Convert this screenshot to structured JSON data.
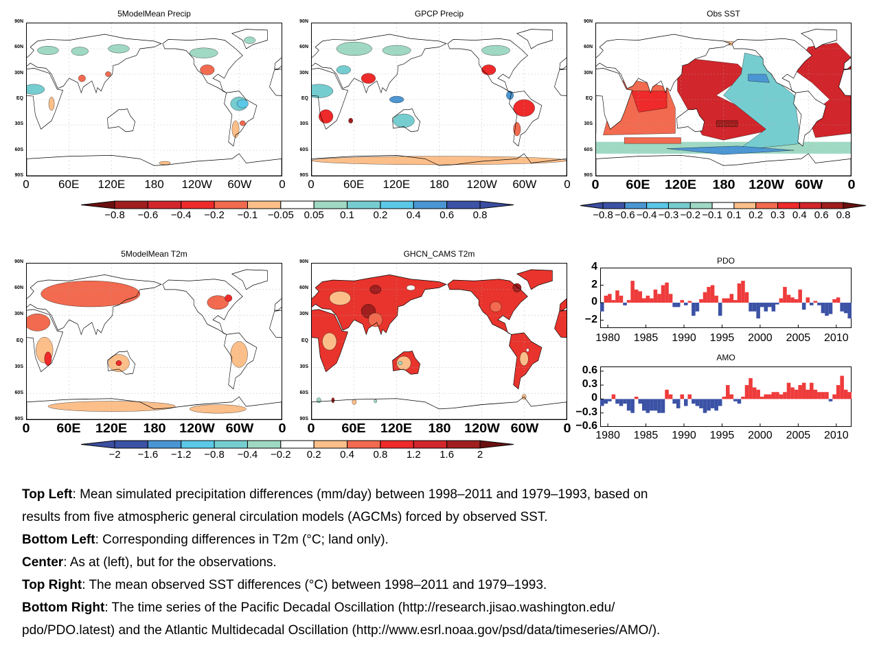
{
  "maps": [
    {
      "id": "m1",
      "title": "5ModelMean Precip",
      "lat_labels": [
        "90N",
        "60N",
        "30N",
        "EQ",
        "30S",
        "60S",
        "90S"
      ],
      "lon_labels": [
        "0",
        "60E",
        "120E",
        "180",
        "120W",
        "60W",
        "0"
      ]
    },
    {
      "id": "m2",
      "title": "GPCP Precip",
      "lat_labels": [
        "90N",
        "60N",
        "30N",
        "EQ",
        "30S",
        "60S",
        "90S"
      ],
      "lon_labels": [
        "0",
        "60E",
        "120E",
        "180",
        "120W",
        "60W",
        "0"
      ]
    },
    {
      "id": "m3",
      "title": "Obs SST",
      "lat_labels": [
        "90N",
        "60N",
        "30N",
        "EQ",
        "30S",
        "60S",
        "90S"
      ],
      "lon_labels": [
        "0",
        "60E",
        "120E",
        "180",
        "120W",
        "60W",
        "0"
      ]
    },
    {
      "id": "m4",
      "title": "5ModelMean T2m",
      "lat_labels": [
        "90N",
        "60N",
        "30N",
        "EQ",
        "30S",
        "60S",
        "90S"
      ],
      "lon_labels": [
        "0",
        "60E",
        "120E",
        "180",
        "120W",
        "60W",
        "0"
      ]
    },
    {
      "id": "m5",
      "title": "GHCN_CAMS T2m",
      "lat_labels": [
        "90N",
        "60N",
        "30N",
        "EQ",
        "30S",
        "60S",
        "90S"
      ],
      "lon_labels": [
        "0",
        "60E",
        "120E",
        "180",
        "120W",
        "60W",
        "0"
      ]
    }
  ],
  "colorbars": {
    "precip": {
      "labels": [
        "−0.8",
        "−0.6",
        "−0.4",
        "−0.2",
        "−0.1",
        "−0.05",
        "0.05",
        "0.1",
        "0.2",
        "0.4",
        "0.6",
        "0.8"
      ],
      "colors": [
        "#6b1010",
        "#a01e1e",
        "#d1262b",
        "#ee2a2a",
        "#f26a4f",
        "#fdbf8a",
        "#ffffff",
        "#9fd9c4",
        "#76cdd0",
        "#5bc8e8",
        "#4a96d4",
        "#3b52a5",
        "#3b4ea0"
      ]
    },
    "sst": {
      "labels": [
        "−0.8",
        "−0.6",
        "−0.4",
        "−0.3",
        "−0.2",
        "−0.1",
        "0.1",
        "0.2",
        "0.3",
        "0.4",
        "0.6",
        "0.8"
      ],
      "colors": [
        "#3b4ea0",
        "#3b52a5",
        "#4a96d4",
        "#5bc8e8",
        "#76cdd0",
        "#9fd9c4",
        "#ffffff",
        "#fdbf8a",
        "#f26a4f",
        "#ee2a2a",
        "#d1262b",
        "#a01e1e",
        "#6b1010"
      ]
    },
    "t2m": {
      "labels": [
        "−2",
        "−1.6",
        "−1.2",
        "−0.8",
        "−0.4",
        "−0.2",
        "0.2",
        "0.4",
        "0.8",
        "1.2",
        "1.6",
        "2"
      ],
      "colors": [
        "#3b4ea0",
        "#3b52a5",
        "#4a96d4",
        "#5bc8e8",
        "#76cdd0",
        "#9fd9c4",
        "#ffffff",
        "#fdbf8a",
        "#f26a4f",
        "#ee2a2a",
        "#d1262b",
        "#a01e1e",
        "#6b1010"
      ]
    }
  },
  "chart_data": [
    {
      "type": "bar",
      "title": "PDO",
      "ylim": [
        -2.9,
        4
      ],
      "yticks": [
        "4",
        "2",
        "0",
        "−2"
      ],
      "ytick_values": [
        4,
        2,
        0,
        -2
      ],
      "xlim": [
        1979,
        2012
      ],
      "xticks": [
        "1980",
        "1985",
        "1990",
        "1995",
        "2000",
        "2005",
        "2010"
      ],
      "positive_color": "#ee3b3b",
      "negative_color": "#3b52a5",
      "x": [
        1979,
        1979.5,
        1980,
        1980.5,
        1981,
        1981.5,
        1982,
        1982.5,
        1983,
        1983.5,
        1984,
        1984.5,
        1985,
        1985.5,
        1986,
        1986.5,
        1987,
        1987.5,
        1988,
        1988.5,
        1989,
        1989.5,
        1990,
        1990.5,
        1991,
        1991.5,
        1992,
        1992.5,
        1993,
        1993.5,
        1994,
        1994.5,
        1995,
        1995.5,
        1996,
        1996.5,
        1997,
        1997.5,
        1998,
        1998.5,
        1999,
        1999.5,
        2000,
        2000.5,
        2001,
        2001.5,
        2002,
        2002.5,
        2003,
        2003.5,
        2004,
        2004.5,
        2005,
        2005.5,
        2006,
        2006.5,
        2007,
        2007.5,
        2008,
        2008.5,
        2009,
        2009.5,
        2010,
        2010.5,
        2011,
        2011.5
      ],
      "values": [
        -1,
        0.8,
        1.0,
        0.3,
        1.4,
        0.8,
        -0.3,
        0.3,
        2.5,
        1.5,
        1.3,
        0.5,
        0.8,
        0.5,
        1.5,
        1.0,
        2.0,
        2.3,
        1.0,
        -0.5,
        -0.5,
        0.3,
        -0.3,
        0.2,
        -1.5,
        -1.0,
        0.4,
        1.2,
        1.8,
        2.0,
        0.8,
        -1.5,
        0.5,
        0.5,
        1.0,
        0.3,
        2.2,
        2.5,
        1.2,
        -1.0,
        -1.0,
        -1.8,
        -0.5,
        -1.0,
        -0.5,
        -1.0,
        -0.2,
        0.5,
        1.8,
        0.9,
        0.6,
        0.4,
        1.5,
        -0.8,
        0.6,
        -0.3,
        0.2,
        -0.3,
        -1.2,
        -1.5,
        -1.3,
        0.4,
        0.6,
        -1.0,
        -1.2,
        -1.8
      ]
    },
    {
      "type": "bar",
      "title": "AMO",
      "ylim": [
        -0.6,
        0.7
      ],
      "yticks": [
        "0.6",
        "0.3",
        "0",
        "−0.3",
        "−0.6"
      ],
      "ytick_values": [
        0.6,
        0.3,
        0,
        -0.3,
        -0.6
      ],
      "xlim": [
        1979,
        2012
      ],
      "xticks": [
        "1980",
        "1985",
        "1990",
        "1995",
        "2000",
        "2005",
        "2010"
      ],
      "positive_color": "#ee3b3b",
      "negative_color": "#3b52a5",
      "x": [
        1979,
        1979.5,
        1980,
        1980.5,
        1981,
        1981.5,
        1982,
        1982.5,
        1983,
        1983.5,
        1984,
        1984.5,
        1985,
        1985.5,
        1986,
        1986.5,
        1987,
        1987.5,
        1988,
        1988.5,
        1989,
        1989.5,
        1990,
        1990.5,
        1991,
        1991.5,
        1992,
        1992.5,
        1993,
        1993.5,
        1994,
        1994.5,
        1995,
        1995.5,
        1996,
        1996.5,
        1997,
        1997.5,
        1998,
        1998.5,
        1999,
        1999.5,
        2000,
        2000.5,
        2001,
        2001.5,
        2002,
        2002.5,
        2003,
        2003.5,
        2004,
        2004.5,
        2005,
        2005.5,
        2006,
        2006.5,
        2007,
        2007.5,
        2008,
        2008.5,
        2009,
        2009.5,
        2010,
        2010.5,
        2011,
        2011.5
      ],
      "values": [
        -0.15,
        -0.1,
        -0.05,
        0.1,
        -0.1,
        -0.15,
        -0.1,
        -0.25,
        -0.3,
        0.05,
        -0.1,
        -0.25,
        -0.3,
        -0.25,
        -0.25,
        -0.3,
        -0.3,
        0.2,
        0.1,
        -0.1,
        -0.2,
        0.1,
        -0.15,
        0.1,
        -0.1,
        -0.15,
        -0.2,
        -0.3,
        -0.25,
        -0.2,
        -0.25,
        -0.15,
        0.05,
        0.3,
        0.1,
        -0.05,
        -0.1,
        0.05,
        0.3,
        0.45,
        0.25,
        0.2,
        0.05,
        0.1,
        0.1,
        0.15,
        0.15,
        0.1,
        0.15,
        0.35,
        0.25,
        0.2,
        0.3,
        0.35,
        0.2,
        0.35,
        0.2,
        0.15,
        0.15,
        0.15,
        -0.05,
        0.1,
        0.3,
        0.5,
        0.2,
        0.15
      ]
    }
  ],
  "caption": [
    {
      "head": "Top Left",
      "text": ": Mean simulated precipitation differences (mm/day) between 1998–2011 and 1979–1993, based on"
    },
    {
      "head": "",
      "text": "results from five atmospheric general circulation models (AGCMs) forced by observed SST."
    },
    {
      "head": "Bottom Left",
      "text": ": Corresponding differences in T2m (°C; land only)."
    },
    {
      "head": "Center",
      "text": ": As at (left), but for the observations."
    },
    {
      "head": "Top Right",
      "text": ": The mean observed SST differences (°C) between 1998–2011 and 1979–1993."
    },
    {
      "head": "Bottom Right",
      "text": ": The time series of the Pacific Decadal Oscillation (http://research.jisao.washington.edu/"
    },
    {
      "head": "",
      "text": "pdo/PDO.latest) and the Atlantic Multidecadal Oscillation (http://www.esrl.noaa.gov/psd/data/timeseries/AMO/)."
    }
  ]
}
